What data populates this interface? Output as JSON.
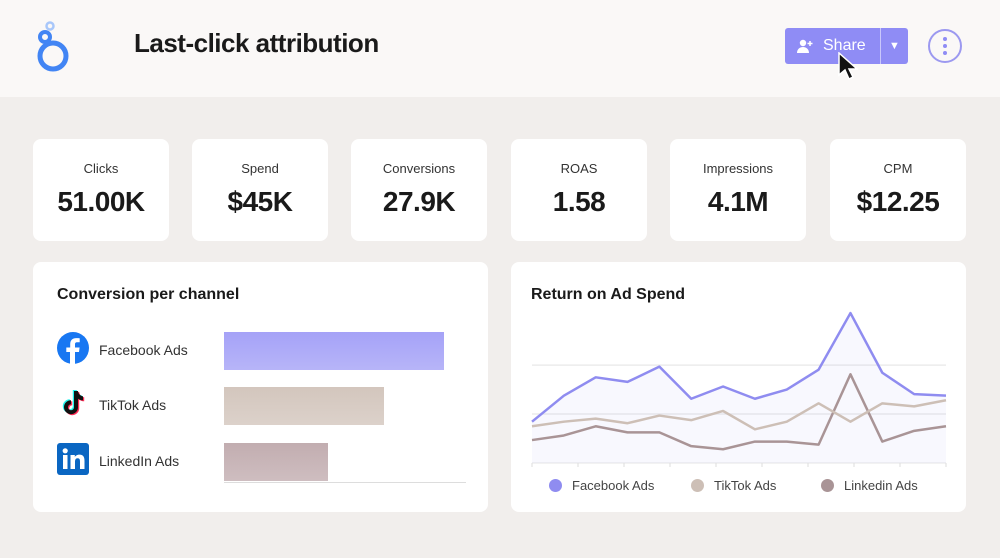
{
  "header": {
    "title": "Last-click attribution",
    "share_label": "Share",
    "logo": "looker-studio-logo"
  },
  "kpis": [
    {
      "label": "Clicks",
      "value": "51.00K"
    },
    {
      "label": "Spend",
      "value": "$45K"
    },
    {
      "label": "Conversions",
      "value": "27.9K"
    },
    {
      "label": "ROAS",
      "value": "1.58"
    },
    {
      "label": "Impressions",
      "value": "4.1M"
    },
    {
      "label": "CPM",
      "value": "$12.25"
    }
  ],
  "conversion_panel": {
    "title": "Conversion per channel",
    "channels": [
      {
        "name": "Facebook Ads",
        "icon": "facebook-icon",
        "share": 0.91,
        "color": "#a5a2f7"
      },
      {
        "name": "TikTok Ads",
        "icon": "tiktok-icon",
        "share": 0.66,
        "color": "#d3c6bd"
      },
      {
        "name": "LinkedIn Ads",
        "icon": "linkedin-icon",
        "share": 0.43,
        "color": "#c2adb0"
      }
    ]
  },
  "chart_data": {
    "type": "line",
    "title": "Return on Ad Spend",
    "x": [
      1,
      2,
      3,
      4,
      5,
      6,
      7,
      8,
      9,
      10,
      11,
      12,
      13,
      14
    ],
    "ylim": [
      0,
      100
    ],
    "grid": true,
    "legend": "bottom",
    "series": [
      {
        "name": "Facebook Ads",
        "color": "#8f8cf0",
        "values": [
          27,
          44,
          56,
          53,
          63,
          42,
          50,
          42,
          48,
          61,
          98,
          59,
          45,
          44
        ]
      },
      {
        "name": "TikTok Ads",
        "color": "#cdbfb6",
        "values": [
          24,
          27,
          29,
          26,
          31,
          28,
          34,
          22,
          27,
          39,
          27,
          39,
          37,
          41
        ]
      },
      {
        "name": "Linkedin Ads",
        "color": "#a99496",
        "values": [
          15,
          18,
          24,
          20,
          20,
          11,
          9,
          14,
          14,
          12,
          58,
          14,
          21,
          24
        ]
      }
    ]
  }
}
